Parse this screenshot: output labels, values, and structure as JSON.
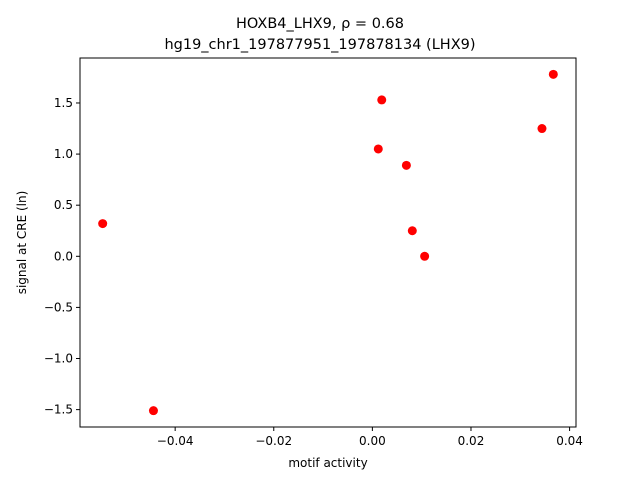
{
  "chart_data": {
    "type": "scatter",
    "title_line1": "HOXB4_LHX9, ρ = 0.68",
    "title_line2": "hg19_chr1_197877951_197878134 (LHX9)",
    "xlabel": "motif activity",
    "ylabel": "signal at CRE (ln)",
    "xlim": [
      -0.0593,
      0.0413
    ],
    "ylim": [
      -1.67,
      1.94
    ],
    "xticks": [
      {
        "value": -0.04,
        "label": "−0.04"
      },
      {
        "value": -0.02,
        "label": "−0.02"
      },
      {
        "value": 0.0,
        "label": "0.00"
      },
      {
        "value": 0.02,
        "label": "0.02"
      },
      {
        "value": 0.04,
        "label": "0.04"
      }
    ],
    "yticks": [
      {
        "value": -1.5,
        "label": "−1.5"
      },
      {
        "value": -1.0,
        "label": "−1.0"
      },
      {
        "value": -0.5,
        "label": "−0.5"
      },
      {
        "value": 0.0,
        "label": "0.0"
      },
      {
        "value": 0.5,
        "label": "0.5"
      },
      {
        "value": 1.0,
        "label": "1.0"
      },
      {
        "value": 1.5,
        "label": "1.5"
      }
    ],
    "grid": false,
    "marker_color": "#ff0000",
    "points": [
      {
        "x": -0.0547,
        "y": 0.32
      },
      {
        "x": -0.0444,
        "y": -1.51
      },
      {
        "x": 0.0012,
        "y": 1.05
      },
      {
        "x": 0.0019,
        "y": 1.53
      },
      {
        "x": 0.0069,
        "y": 0.89
      },
      {
        "x": 0.0081,
        "y": 0.25
      },
      {
        "x": 0.0106,
        "y": 0.0
      },
      {
        "x": 0.0344,
        "y": 1.25
      },
      {
        "x": 0.0367,
        "y": 1.78
      }
    ]
  }
}
